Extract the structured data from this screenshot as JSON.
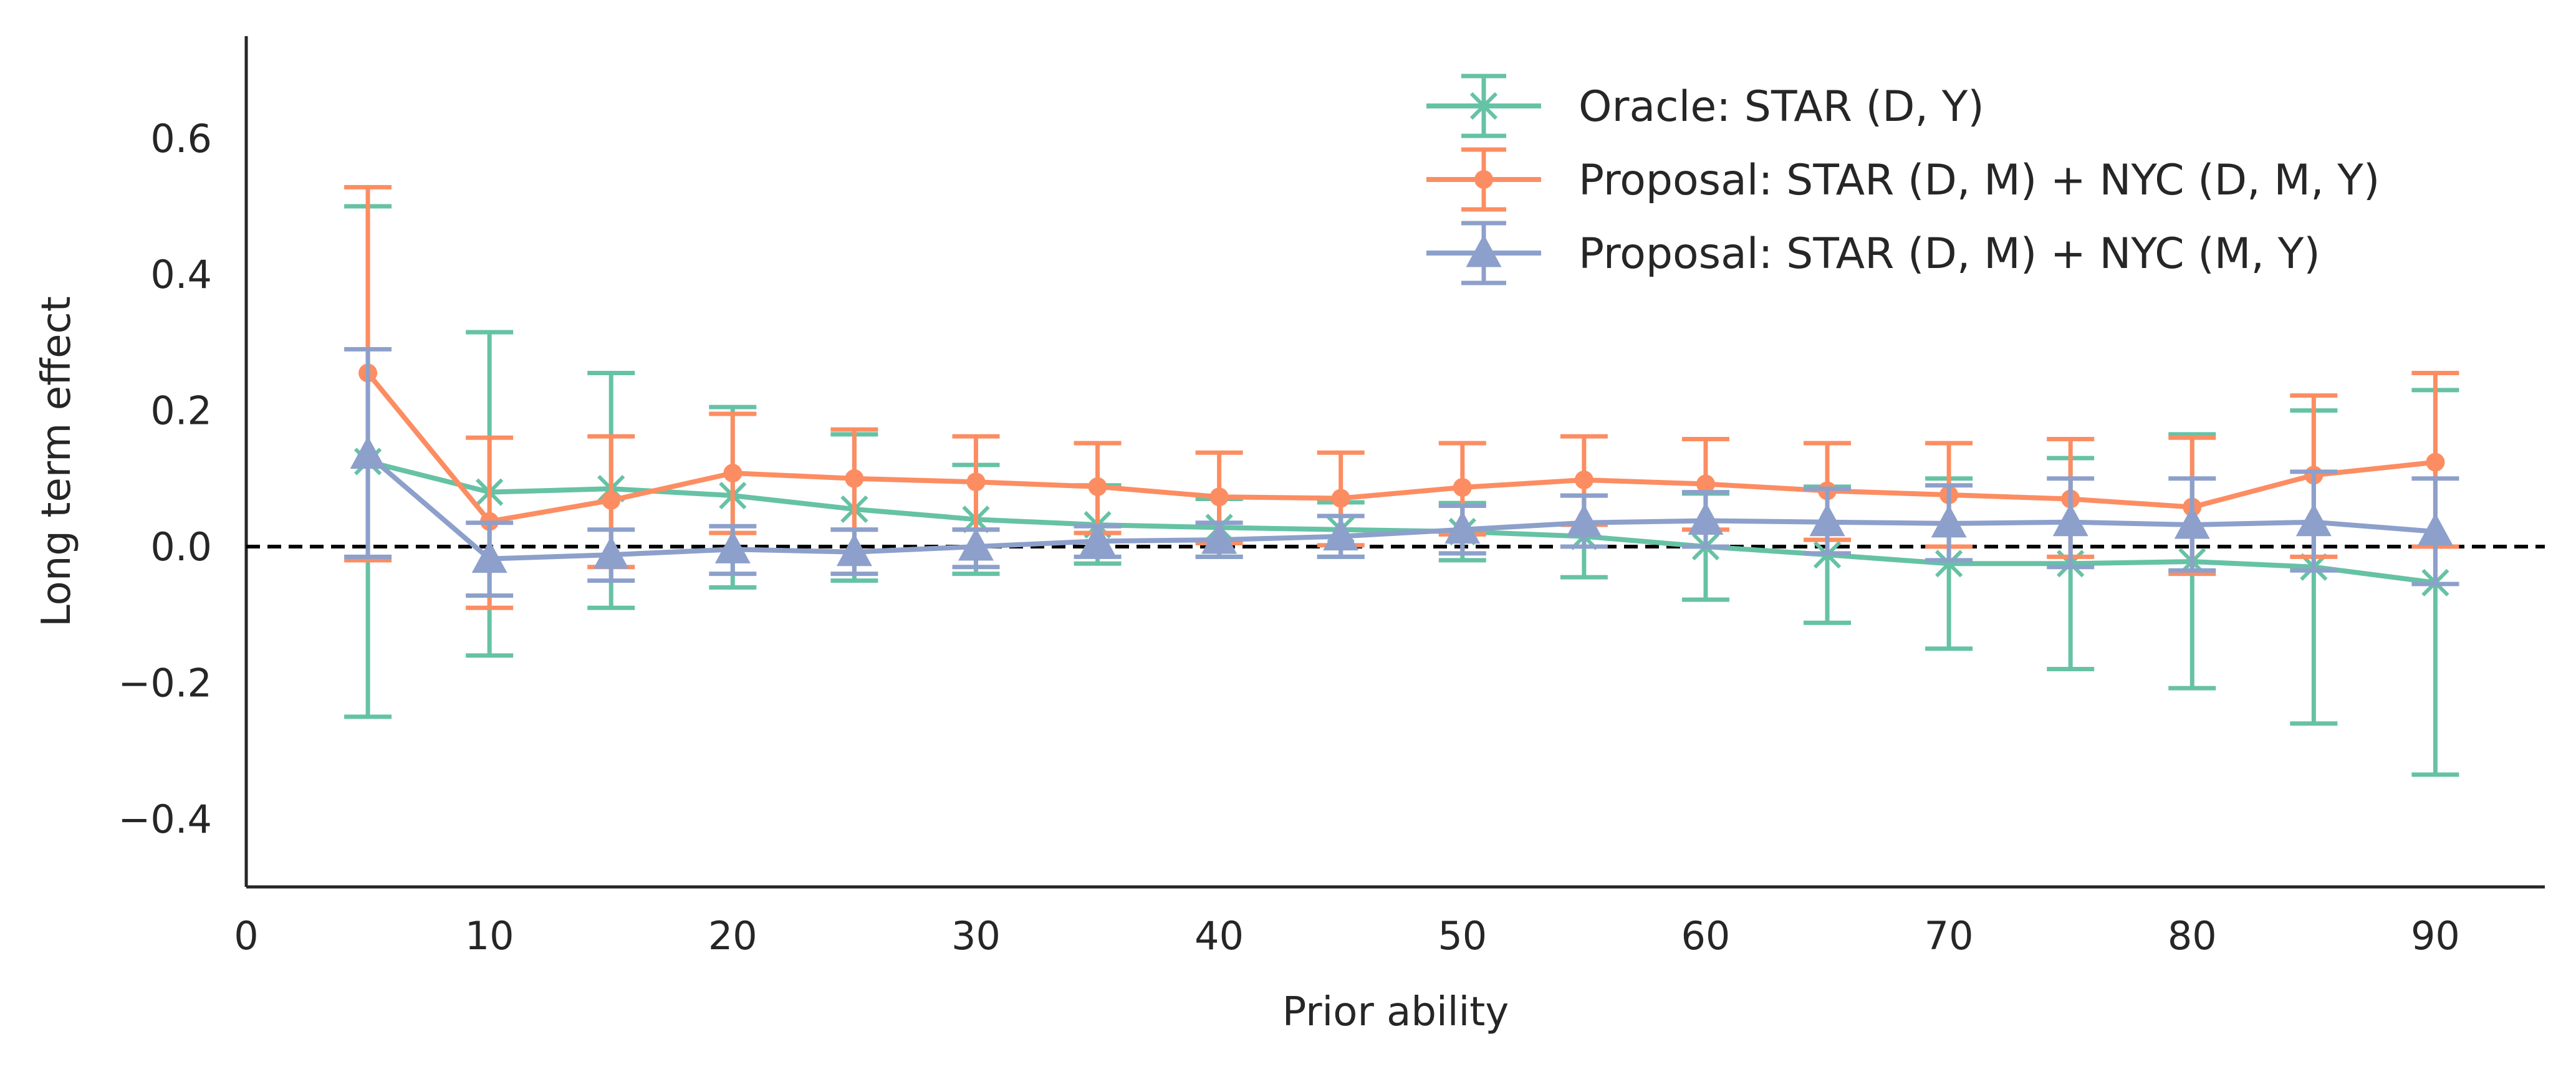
{
  "chart_data": {
    "type": "line",
    "xlabel": "Prior ability",
    "ylabel": "Long term effect",
    "xlim": [
      0,
      94.5
    ],
    "ylim": [
      -0.5,
      0.75
    ],
    "xticks": [
      0,
      10,
      20,
      30,
      40,
      50,
      60,
      70,
      80,
      90
    ],
    "yticks": [
      -0.4,
      -0.2,
      0.0,
      0.2,
      0.4,
      0.6
    ],
    "ytick_labels": [
      "−0.4",
      "−0.2",
      "0.0",
      "0.2",
      "0.4",
      "0.6"
    ],
    "grid": false,
    "legend_position": "top-right",
    "reference_line": {
      "y": 0.0,
      "style": "dashed",
      "color": "#000000"
    },
    "x": [
      5,
      10,
      15,
      20,
      25,
      30,
      35,
      40,
      45,
      50,
      55,
      60,
      65,
      70,
      75,
      80,
      85,
      90
    ],
    "series": [
      {
        "name": "Oracle: STAR (D, Y)",
        "color": "#66c2a5",
        "marker": "x",
        "values": [
          0.125,
          0.08,
          0.085,
          0.075,
          0.055,
          0.04,
          0.032,
          0.028,
          0.025,
          0.022,
          0.015,
          0.0,
          -0.012,
          -0.025,
          -0.025,
          -0.022,
          -0.03,
          -0.053
        ],
        "lower": [
          -0.25,
          -0.16,
          -0.09,
          -0.06,
          -0.05,
          -0.04,
          -0.025,
          -0.015,
          -0.015,
          -0.02,
          -0.045,
          -0.078,
          -0.112,
          -0.15,
          -0.18,
          -0.208,
          -0.26,
          -0.335
        ],
        "upper": [
          0.5,
          0.315,
          0.255,
          0.205,
          0.165,
          0.12,
          0.09,
          0.07,
          0.065,
          0.064,
          0.075,
          0.078,
          0.088,
          0.1,
          0.13,
          0.165,
          0.2,
          0.23
        ]
      },
      {
        "name": "Proposal: STAR (D, M) + NYC (D, M, Y)",
        "color": "#fc8d62",
        "marker": "o",
        "values": [
          0.255,
          0.037,
          0.068,
          0.108,
          0.1,
          0.095,
          0.088,
          0.073,
          0.071,
          0.087,
          0.098,
          0.092,
          0.082,
          0.076,
          0.07,
          0.058,
          0.105,
          0.124
        ],
        "lower": [
          -0.02,
          -0.09,
          -0.03,
          0.02,
          0.025,
          0.025,
          0.02,
          0.005,
          0.002,
          0.018,
          0.032,
          0.025,
          0.01,
          0.0,
          -0.015,
          -0.04,
          -0.015,
          0.0
        ],
        "upper": [
          0.528,
          0.16,
          0.162,
          0.195,
          0.172,
          0.162,
          0.152,
          0.138,
          0.138,
          0.152,
          0.162,
          0.158,
          0.152,
          0.152,
          0.158,
          0.16,
          0.222,
          0.255
        ]
      },
      {
        "name": "Proposal: STAR (D, M) + NYC (M, Y)",
        "color": "#8da0cb",
        "marker": "^",
        "values": [
          0.135,
          -0.018,
          -0.012,
          -0.004,
          -0.008,
          0.0,
          0.008,
          0.01,
          0.015,
          0.025,
          0.035,
          0.038,
          0.036,
          0.034,
          0.036,
          0.032,
          0.036,
          0.022
        ],
        "lower": [
          -0.015,
          -0.072,
          -0.05,
          -0.04,
          -0.04,
          -0.03,
          -0.015,
          -0.015,
          -0.015,
          -0.01,
          0.0,
          0.0,
          -0.01,
          -0.02,
          -0.03,
          -0.035,
          -0.035,
          -0.055
        ],
        "upper": [
          0.29,
          0.035,
          0.025,
          0.03,
          0.025,
          0.025,
          0.03,
          0.035,
          0.045,
          0.06,
          0.075,
          0.08,
          0.085,
          0.09,
          0.1,
          0.1,
          0.11,
          0.1
        ]
      }
    ]
  }
}
